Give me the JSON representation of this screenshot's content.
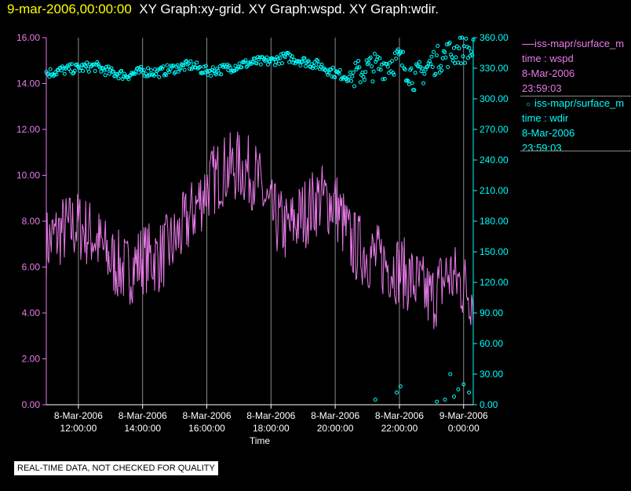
{
  "header": {
    "timestamp": "9-mar-2006,00:00:00",
    "graphs": "XY Graph:xy-grid.  XY Graph:wspd.  XY Graph:wdir."
  },
  "legend": [
    {
      "line1": "iss-mapr/surface_m",
      "line2": "time : wspd",
      "line3": "8-Mar-2006",
      "line4": "23:59:03",
      "color": "#e87ae8"
    },
    {
      "line1": "iss-mapr/surface_m",
      "line2": "time : wdir",
      "line3": "8-Mar-2006",
      "line4": "23:59:03",
      "color": "#00ffff"
    }
  ],
  "disclaimer": "REAL-TIME DATA, NOT CHECKED FOR QUALITY",
  "chart_data": {
    "type": "line",
    "xlabel": "Time",
    "x_ticks": [
      {
        "date": "8-Mar-2006",
        "time": "12:00:00"
      },
      {
        "date": "8-Mar-2006",
        "time": "14:00:00"
      },
      {
        "date": "8-Mar-2006",
        "time": "16:00:00"
      },
      {
        "date": "8-Mar-2006",
        "time": "18:00:00"
      },
      {
        "date": "8-Mar-2006",
        "time": "20:00:00"
      },
      {
        "date": "8-Mar-2006",
        "time": "22:00:00"
      },
      {
        "date": "9-Mar-2006",
        "time": "0:00:00"
      }
    ],
    "x_range": [
      "2006-03-08T11:00",
      "2006-03-09T00:18"
    ],
    "left_axis": {
      "ticks": [
        "0.00",
        "2.00",
        "4.00",
        "6.00",
        "8.00",
        "10.00",
        "12.00",
        "14.00",
        "16.00"
      ],
      "ylim": [
        0,
        16
      ],
      "color": "#e87ae8"
    },
    "right_axis": {
      "ticks": [
        "0.00",
        "30.00",
        "60.00",
        "90.00",
        "120.00",
        "150.00",
        "180.00",
        "210.00",
        "240.00",
        "270.00",
        "300.00",
        "330.00",
        "360.00"
      ],
      "ylim": [
        0,
        360
      ],
      "color": "#00ffff"
    },
    "grid": "vertical",
    "series": [
      {
        "key": "wspd",
        "style": "line",
        "axis": "left",
        "color": "#e87ae8",
        "x": [
          "2006-03-08T11:00",
          "2006-03-08T11:30",
          "2006-03-08T12:00",
          "2006-03-08T12:30",
          "2006-03-08T13:00",
          "2006-03-08T13:30",
          "2006-03-08T14:00",
          "2006-03-08T14:30",
          "2006-03-08T15:00",
          "2006-03-08T15:30",
          "2006-03-08T16:00",
          "2006-03-08T16:30",
          "2006-03-08T17:00",
          "2006-03-08T17:30",
          "2006-03-08T18:00",
          "2006-03-08T18:30",
          "2006-03-08T19:00",
          "2006-03-08T19:30",
          "2006-03-08T20:00",
          "2006-03-08T20:30",
          "2006-03-08T21:00",
          "2006-03-08T21:30",
          "2006-03-08T22:00",
          "2006-03-08T22:30",
          "2006-03-08T23:00",
          "2006-03-08T23:30",
          "2006-03-09T00:00",
          "2006-03-09T00:18"
        ],
        "y": [
          7.0,
          7.6,
          7.8,
          7.3,
          6.3,
          5.8,
          6.4,
          6.4,
          7.1,
          8.2,
          9.5,
          10.2,
          10.4,
          10.0,
          8.3,
          7.6,
          8.3,
          9.0,
          8.8,
          7.0,
          6.6,
          6.2,
          5.9,
          5.3,
          4.6,
          5.7,
          5.2,
          4.8
        ]
      },
      {
        "key": "wdir",
        "style": "scatter",
        "axis": "right",
        "color": "#00ffff",
        "x": [
          "2006-03-08T11:00",
          "2006-03-08T11:30",
          "2006-03-08T12:00",
          "2006-03-08T12:30",
          "2006-03-08T13:00",
          "2006-03-08T13:30",
          "2006-03-08T14:00",
          "2006-03-08T14:30",
          "2006-03-08T15:00",
          "2006-03-08T15:30",
          "2006-03-08T16:00",
          "2006-03-08T16:30",
          "2006-03-08T17:00",
          "2006-03-08T17:30",
          "2006-03-08T18:00",
          "2006-03-08T18:30",
          "2006-03-08T19:00",
          "2006-03-08T19:30",
          "2006-03-08T20:00",
          "2006-03-08T20:30",
          "2006-03-08T21:00",
          "2006-03-08T21:30",
          "2006-03-08T22:00",
          "2006-03-08T22:30",
          "2006-03-08T23:00",
          "2006-03-08T23:30",
          "2006-03-09T00:00",
          "2006-03-09T00:18"
        ],
        "y": [
          325,
          328,
          330,
          332,
          326,
          323,
          327,
          326,
          330,
          333,
          327,
          329,
          333,
          336,
          337,
          341,
          337,
          333,
          325,
          321,
          330,
          333,
          339,
          320,
          335,
          344,
          349,
          345
        ],
        "low_cluster": {
          "x": [
            "2006-03-08T21:15",
            "2006-03-08T21:55",
            "2006-03-08T22:02",
            "2006-03-08T23:10",
            "2006-03-08T23:25",
            "2006-03-08T23:35",
            "2006-03-08T23:42",
            "2006-03-08T23:50",
            "2006-03-09T00:00",
            "2006-03-09T00:10"
          ],
          "y": [
            5,
            12,
            18,
            3,
            5,
            30,
            8,
            15,
            20,
            12
          ]
        }
      }
    ]
  }
}
